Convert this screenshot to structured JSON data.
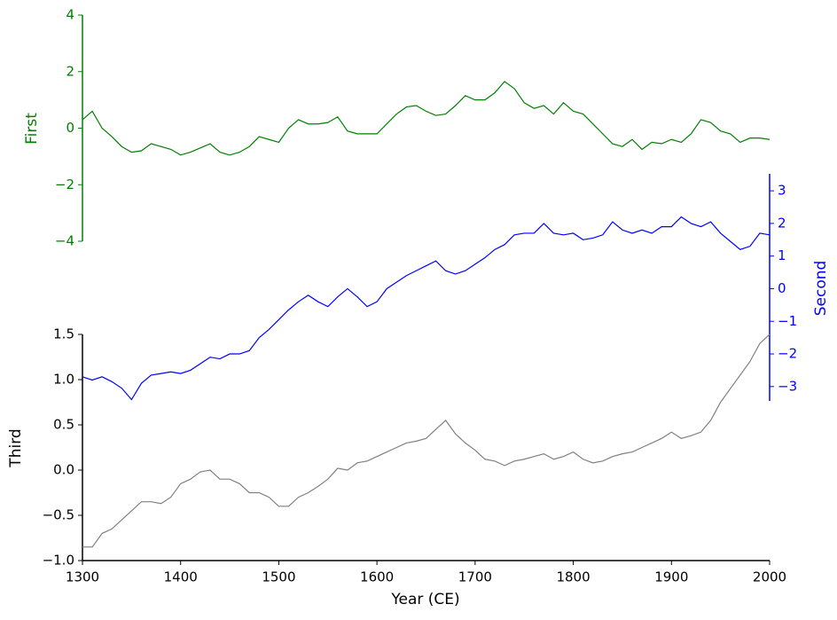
{
  "chart_data": {
    "type": "line",
    "xlabel": "Year (CE)",
    "ylabel": "First",
    "y2label": "Second",
    "y3label": "Third",
    "x": [
      1300,
      1310,
      1320,
      1330,
      1340,
      1350,
      1360,
      1370,
      1380,
      1390,
      1400,
      1410,
      1420,
      1430,
      1440,
      1450,
      1460,
      1470,
      1480,
      1490,
      1500,
      1510,
      1520,
      1530,
      1540,
      1550,
      1560,
      1570,
      1580,
      1590,
      1600,
      1610,
      1620,
      1630,
      1640,
      1650,
      1660,
      1670,
      1680,
      1690,
      1700,
      1710,
      1720,
      1730,
      1740,
      1750,
      1760,
      1770,
      1780,
      1790,
      1800,
      1810,
      1820,
      1830,
      1840,
      1850,
      1860,
      1870,
      1880,
      1890,
      1900,
      1910,
      1920,
      1930,
      1940,
      1950,
      1960,
      1970,
      1980,
      1990,
      2000
    ],
    "xlim": [
      1300,
      2000
    ],
    "xticks": [
      1300,
      1400,
      1500,
      1600,
      1700,
      1800,
      1900,
      2000
    ],
    "ylim": [
      -4,
      4
    ],
    "yticks": [
      {
        "value": -4,
        "label": "−4"
      },
      {
        "value": -2,
        "label": "−2"
      },
      0,
      2,
      4
    ],
    "y2lim": [
      -3.44,
      3.52
    ],
    "y2ticks": [
      {
        "value": -3,
        "label": "−3"
      },
      {
        "value": -2,
        "label": "−2"
      },
      {
        "value": -1,
        "label": "−1"
      },
      0,
      1,
      2,
      3
    ],
    "y3lim": [
      -1,
      1.5
    ],
    "y3ticks": [
      {
        "value": -1,
        "label": "−1.0"
      },
      {
        "value": -0.5,
        "label": "−0.5"
      },
      {
        "value": 0,
        "label": "0.0"
      },
      {
        "value": 0.5,
        "label": "0.5"
      },
      {
        "value": 1,
        "label": "1.0"
      },
      {
        "value": 1.5,
        "label": "1.5"
      }
    ],
    "series": [
      {
        "name": "First",
        "color": "#008000",
        "axis": "y",
        "values": [
          0.3,
          0.6,
          0,
          -0.3,
          -0.65,
          -0.85,
          -0.8,
          -0.55,
          -0.65,
          -0.75,
          -0.95,
          -0.85,
          -0.7,
          -0.55,
          -0.85,
          -0.95,
          -0.85,
          -0.65,
          -0.3,
          -0.4,
          -0.5,
          0,
          0.3,
          0.15,
          0.15,
          0.2,
          0.4,
          -0.1,
          -0.2,
          -0.2,
          -0.2,
          0.15,
          0.5,
          0.75,
          0.8,
          0.6,
          0.45,
          0.5,
          0.8,
          1.15,
          1.0,
          1.0,
          1.25,
          1.65,
          1.4,
          0.9,
          0.7,
          0.8,
          0.5,
          0.9,
          0.6,
          0.5,
          0.15,
          -0.2,
          -0.55,
          -0.65,
          -0.4,
          -0.75,
          -0.5,
          -0.55,
          -0.4,
          -0.5,
          -0.2,
          0.3,
          0.2,
          -0.1,
          -0.2,
          -0.5,
          -0.35,
          -0.35,
          -0.4
        ]
      },
      {
        "name": "Second",
        "color": "#0000ff",
        "axis": "y2",
        "values": [
          -2.7,
          -2.8,
          -2.7,
          -2.85,
          -3.05,
          -3.4,
          -2.9,
          -2.65,
          -2.6,
          -2.55,
          -2.6,
          -2.5,
          -2.3,
          -2.1,
          -2.15,
          -2.0,
          -2.0,
          -1.9,
          -1.5,
          -1.25,
          -0.95,
          -0.65,
          -0.4,
          -0.2,
          -0.4,
          -0.55,
          -0.25,
          0,
          -0.25,
          -0.55,
          -0.4,
          0,
          0.2,
          0.4,
          0.55,
          0.7,
          0.85,
          0.55,
          0.45,
          0.55,
          0.75,
          0.95,
          1.2,
          1.35,
          1.65,
          1.7,
          1.7,
          2.0,
          1.7,
          1.65,
          1.7,
          1.5,
          1.55,
          1.65,
          2.05,
          1.8,
          1.7,
          1.8,
          1.7,
          1.9,
          1.9,
          2.2,
          2.0,
          1.9,
          2.05,
          1.7,
          1.45,
          1.2,
          1.3,
          1.7,
          1.65
        ]
      },
      {
        "name": "Third",
        "color": "#808080",
        "axis": "y3",
        "values": [
          -0.85,
          -0.85,
          -0.7,
          -0.65,
          -0.55,
          -0.45,
          -0.35,
          -0.35,
          -0.37,
          -0.3,
          -0.15,
          -0.1,
          -0.02,
          0,
          -0.1,
          -0.1,
          -0.15,
          -0.25,
          -0.25,
          -0.3,
          -0.4,
          -0.4,
          -0.3,
          -0.25,
          -0.18,
          -0.1,
          0.02,
          0,
          0.08,
          0.1,
          0.15,
          0.2,
          0.25,
          0.3,
          0.32,
          0.35,
          0.45,
          0.55,
          0.4,
          0.3,
          0.22,
          0.12,
          0.1,
          0.05,
          0.1,
          0.12,
          0.15,
          0.18,
          0.12,
          0.15,
          0.2,
          0.12,
          0.08,
          0.1,
          0.15,
          0.18,
          0.2,
          0.25,
          0.3,
          0.35,
          0.42,
          0.35,
          0.38,
          0.42,
          0.55,
          0.75,
          0.9,
          1.05,
          1.2,
          1.4,
          1.5
        ]
      }
    ]
  }
}
